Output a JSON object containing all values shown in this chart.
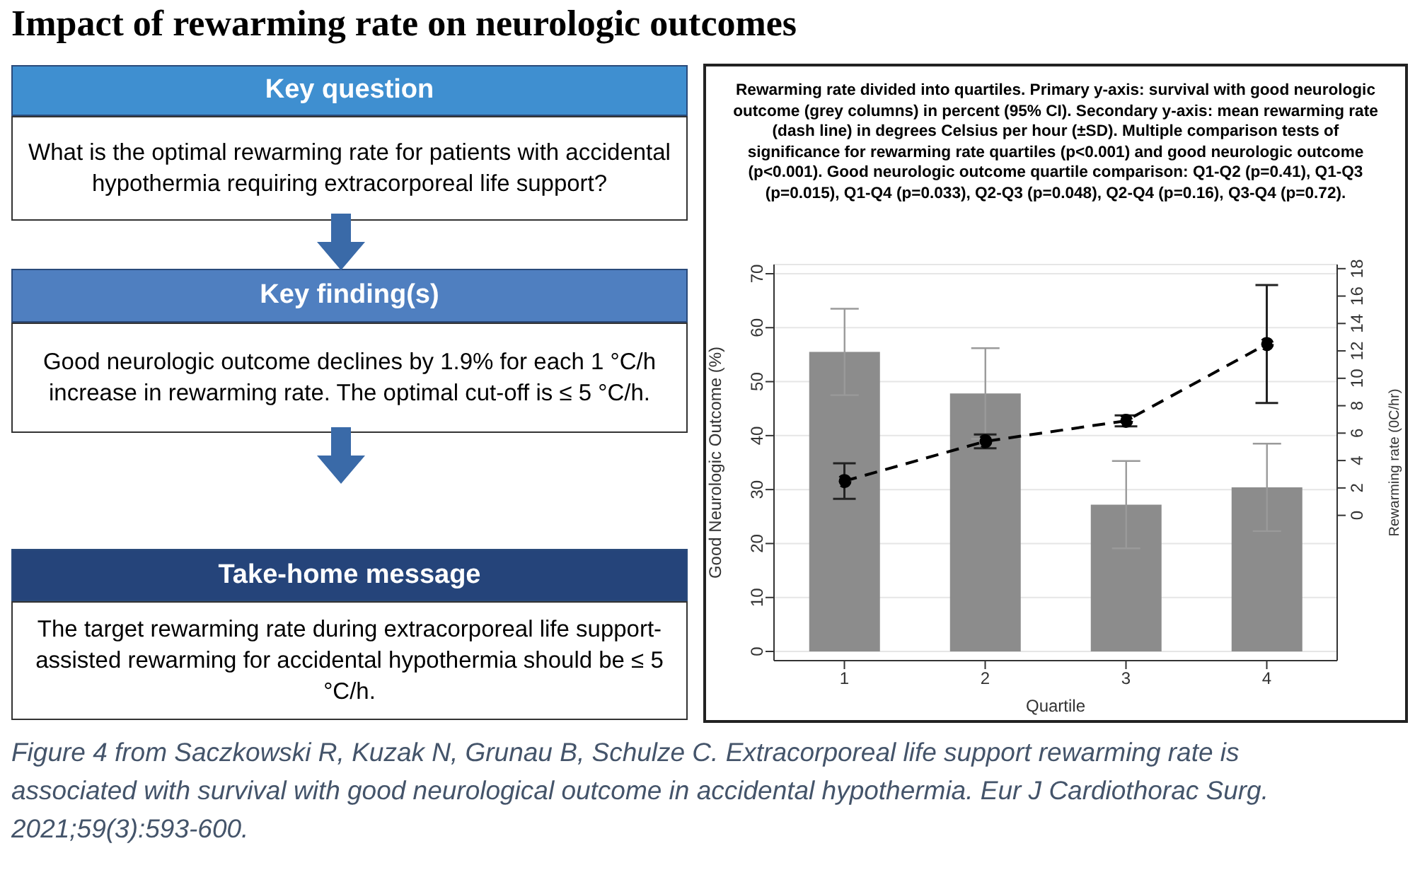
{
  "chart_data": [
    {
      "type": "other",
      "title": "Impact of rewarming rate on neurologic outcomes",
      "annotations": [
        "Key question",
        "What is the optimal rewarming rate for patients with accidental hypothermia requiring extracorporeal life support?",
        "Key finding(s)",
        "Good neurologic outcome declines by 1.9% for each 1 °C/h increase in rewarming rate. The optimal cut-off is ≤ 5 °C/h.",
        "Take-home message",
        "The target rewarming rate during extracorporeal life support-assisted rewarming for accidental hypothermia should be ≤ 5 °C/h.",
        "Figure 4 from Saczkowski R, Kuzak N, Grunau B, Schulze C. Extracorporeal life support rewarming rate is associated with survival with good neurological outcome in accidental hypothermia. Eur J Cardiothorac Surg. 2021;59(3):593-600."
      ]
    },
    {
      "type": "bar",
      "title": "Rewarming rate divided into quartiles. Primary y-axis: survival with good neurologic outcome (grey columns) in percent (95% CI). Secondary y-axis: mean rewarming rate (dash line) in degrees Celsius per hour (±SD).  Multiple comparison tests of significance for rewarming rate quartiles (p<0.001) and good neurologic outcome (p<0.001).  Good neurologic outcome quartile comparison: Q1-Q2 (p=0.41), Q1-Q3 (p=0.015), Q1-Q4 (p=0.033), Q2-Q3 (p=0.048), Q2-Q4 (p=0.16), Q3-Q4 (p=0.72).",
      "xlabel": "Quartile",
      "ylabel": "Good Neurologic Outcome (%)",
      "y2label": "Rewarming rate (0C/hr)",
      "categories": [
        "1",
        "2",
        "3",
        "4"
      ],
      "series": [
        {
          "type": "bar",
          "color": "#8c8c8c",
          "values": [
            55.5,
            47.8,
            27.2,
            30.4
          ],
          "errors": [
            8.0,
            8.4,
            8.1,
            8.1
          ]
        },
        {
          "type": "line",
          "axis": "y2",
          "color": "#000000",
          "line_style": "dashed",
          "marker": "circle",
          "values": [
            2.5,
            5.4,
            6.9,
            12.5
          ],
          "errors": [
            1.3,
            0.5,
            0.4,
            4.3
          ]
        }
      ],
      "ylim": [
        -1.7,
        71.7
      ],
      "yticks": [
        0,
        10,
        20,
        30,
        40,
        50,
        60,
        70
      ],
      "y2lim": [
        -10.6,
        18.3
      ],
      "y2ticks": [
        0,
        2,
        4,
        6,
        8,
        10,
        12,
        14,
        16,
        18
      ],
      "grid": "y"
    }
  ]
}
